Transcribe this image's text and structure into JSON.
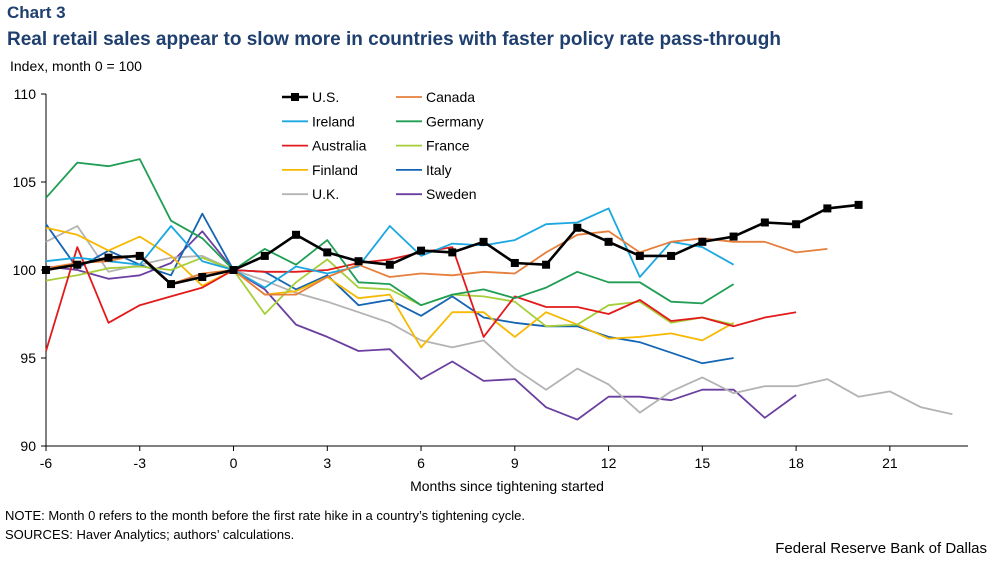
{
  "header": {
    "chart_number": "Chart 3",
    "title": "Real retail sales appear to slow more in countries with faster policy rate pass-through",
    "unit_label": "Index,  month 0 = 100"
  },
  "footer": {
    "note": "NOTE: Month 0 refers to the month before the first rate hike in a country’s tightening cycle.",
    "sources": "SOURCES: Haver Analytics; authors’ calculations.",
    "credit": "Federal Reserve Bank of Dallas"
  },
  "chart_data": {
    "type": "line",
    "title": "Real retail sales appear to slow more in countries with faster policy rate pass-through",
    "xlabel": "Months since tightening started",
    "ylabel": "Index,  month 0 = 100",
    "xlim": [
      -6,
      23.5
    ],
    "ylim": [
      90,
      110
    ],
    "x_ticks": [
      "-6",
      "-3",
      "0",
      "3",
      "6",
      "9",
      "12",
      "15",
      "18",
      "21"
    ],
    "y_ticks": [
      "90",
      "95",
      "100",
      "105",
      "110"
    ],
    "grid": false,
    "legend": "top-center",
    "series": [
      {
        "name": "U.S.",
        "color": "#000000",
        "markers": true,
        "start": -6,
        "values": [
          100.0,
          100.3,
          100.7,
          100.8,
          99.2,
          99.6,
          100.0,
          100.8,
          102.0,
          101.0,
          100.5,
          100.3,
          101.1,
          101.0,
          101.6,
          100.4,
          100.3,
          102.4,
          101.6,
          100.8,
          100.8,
          101.6,
          101.9,
          102.7,
          102.6,
          103.5,
          103.7
        ]
      },
      {
        "name": "Canada",
        "color": "#e67e3c",
        "start": -6,
        "values": [
          100.1,
          100.4,
          100.5,
          100.9,
          99.2,
          99.8,
          100.0,
          98.6,
          98.6,
          99.6,
          100.3,
          99.6,
          99.8,
          99.7,
          99.9,
          99.8,
          101.0,
          102.0,
          102.2,
          101.0,
          101.6,
          101.8,
          101.6,
          101.6,
          101.0,
          101.2
        ]
      },
      {
        "name": "Ireland",
        "color": "#1ba7e0",
        "start": -6,
        "values": [
          100.5,
          100.7,
          100.5,
          100.3,
          102.5,
          100.5,
          100.0,
          99.0,
          100.2,
          99.8,
          100.2,
          102.5,
          100.8,
          101.5,
          101.4,
          101.7,
          102.6,
          102.7,
          103.5,
          99.6,
          101.6,
          101.3,
          100.3
        ]
      },
      {
        "name": "Germany",
        "color": "#1f9e54",
        "start": -6,
        "values": [
          104.1,
          106.1,
          105.9,
          106.3,
          102.8,
          101.8,
          100.0,
          101.2,
          100.3,
          101.7,
          99.3,
          99.2,
          98.0,
          98.6,
          98.9,
          98.4,
          99.0,
          99.9,
          99.3,
          99.3,
          98.2,
          98.1,
          99.2
        ]
      },
      {
        "name": "Australia",
        "color": "#e31a1c",
        "start": -6,
        "values": [
          95.4,
          101.3,
          97.0,
          98.0,
          98.5,
          99.0,
          100.0,
          99.9,
          99.9,
          100.0,
          100.4,
          100.6,
          101.0,
          101.3,
          96.2,
          98.5,
          97.9,
          97.9,
          97.5,
          98.3,
          97.1,
          97.3,
          96.8,
          97.3,
          97.6
        ]
      },
      {
        "name": "France",
        "color": "#a6ce39",
        "start": -6,
        "values": [
          99.4,
          99.7,
          100.1,
          100.2,
          100.0,
          100.7,
          100.0,
          97.5,
          99.3,
          100.6,
          99.0,
          98.9,
          98.0,
          98.6,
          98.5,
          98.2,
          96.8,
          96.9,
          98.0,
          98.2,
          97.0,
          97.3,
          96.9
        ]
      },
      {
        "name": "Finland",
        "color": "#f7b900",
        "start": -6,
        "values": [
          102.4,
          102.0,
          101.1,
          101.9,
          100.8,
          99.1,
          100.0,
          98.6,
          98.8,
          99.6,
          98.4,
          98.6,
          95.6,
          97.6,
          97.6,
          96.2,
          97.6,
          96.9,
          96.1,
          96.2,
          96.4,
          96.0,
          97.0
        ]
      },
      {
        "name": "Italy",
        "color": "#1465b4",
        "start": -6,
        "values": [
          102.6,
          100.1,
          101.1,
          100.3,
          99.7,
          103.2,
          100.0,
          99.9,
          98.9,
          99.7,
          98.0,
          98.3,
          97.4,
          98.5,
          97.3,
          97.0,
          96.8,
          96.8,
          96.2,
          95.9,
          95.3,
          94.7,
          95.0
        ]
      },
      {
        "name": "U.K.",
        "color": "#b3b3b3",
        "start": -6,
        "values": [
          101.6,
          102.5,
          99.9,
          100.3,
          100.7,
          100.8,
          100.0,
          99.4,
          98.7,
          98.2,
          97.6,
          97.0,
          96.0,
          95.6,
          96.0,
          94.4,
          93.2,
          94.4,
          93.5,
          91.9,
          93.1,
          93.9,
          93.0,
          93.4,
          93.4,
          93.8,
          92.8,
          93.1,
          92.2,
          91.8
        ]
      },
      {
        "name": "Sweden",
        "color": "#6b3fa0",
        "start": -6,
        "values": [
          100.2,
          100.0,
          99.5,
          99.7,
          100.4,
          102.2,
          100.0,
          98.9,
          96.9,
          96.2,
          95.4,
          95.5,
          93.8,
          94.8,
          93.7,
          93.8,
          92.2,
          91.5,
          92.8,
          92.8,
          92.6,
          93.2,
          93.2,
          91.6,
          92.9
        ]
      }
    ]
  }
}
